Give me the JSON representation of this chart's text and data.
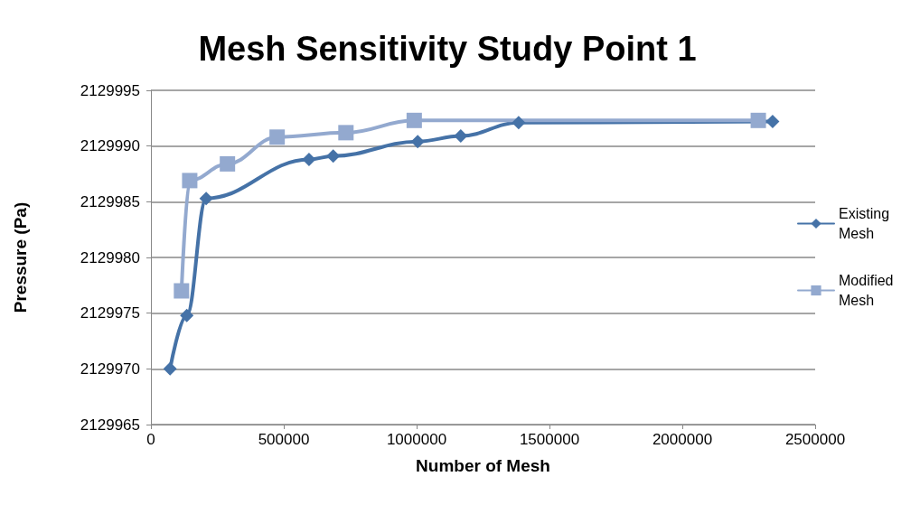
{
  "chart_data": {
    "type": "line",
    "title": "Mesh Sensitivity Study Point 1",
    "xlabel": "Number of Mesh",
    "ylabel": "Pressure (Pa)",
    "series": [
      {
        "name": "Existing Mesh",
        "color": "#4572a7",
        "marker": "diamond",
        "x": [
          72000,
          135000,
          208000,
          595000,
          686000,
          1004000,
          1166000,
          1384000,
          2340000
        ],
        "values": [
          2129970.0,
          2129974.8,
          2129985.3,
          2129988.8,
          2129989.1,
          2129990.4,
          2129990.9,
          2129992.1,
          2129992.2
        ]
      },
      {
        "name": "Modified Mesh",
        "color": "#93a9cf",
        "marker": "square",
        "x": [
          115000,
          146000,
          288000,
          475000,
          734000,
          991000,
          2286000
        ],
        "values": [
          2129977.0,
          2129986.9,
          2129988.4,
          2129990.8,
          2129991.2,
          2129992.3,
          2129992.3
        ]
      }
    ],
    "xlim": [
      0,
      2500000
    ],
    "xticks": [
      0,
      500000,
      1000000,
      1500000,
      2000000,
      2500000
    ],
    "ylim": [
      2129965,
      2129995
    ],
    "yticks": [
      2129965,
      2129970,
      2129975,
      2129980,
      2129985,
      2129990,
      2129995
    ],
    "grid": "y",
    "legend": "right",
    "line_style": "solid"
  }
}
